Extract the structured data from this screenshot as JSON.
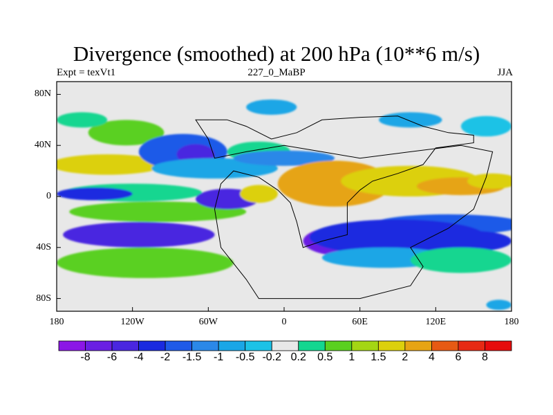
{
  "title": "Divergence (smoothed) at 200 hPa (10**6 m/s)",
  "subtitle": {
    "left": "Expt = texVt1",
    "center": "227_0_MaBP",
    "right": "JJA"
  },
  "axes": {
    "lat": [
      {
        "label": "80N",
        "value": 80
      },
      {
        "label": "40N",
        "value": 40
      },
      {
        "label": "0",
        "value": 0
      },
      {
        "label": "40S",
        "value": -40
      },
      {
        "label": "80S",
        "value": -80
      }
    ],
    "lon": [
      {
        "label": "180",
        "value": -180
      },
      {
        "label": "120W",
        "value": -120
      },
      {
        "label": "60W",
        "value": -60
      },
      {
        "label": "0",
        "value": 0
      },
      {
        "label": "60E",
        "value": 60
      },
      {
        "label": "120E",
        "value": 120
      },
      {
        "label": "180",
        "value": 180
      }
    ],
    "lon_range": [
      -180,
      180
    ],
    "lat_range": [
      -90,
      90
    ]
  },
  "colorbar": {
    "labels": [
      "-8",
      "-6",
      "-4",
      "-2",
      "-1.5",
      "-1",
      "-0.5",
      "-0.2",
      "0.2",
      "0.5",
      "1",
      "1.5",
      "2",
      "4",
      "6",
      "8"
    ],
    "colors": [
      "#8b16e6",
      "#6a1fe3",
      "#4a26e0",
      "#1a2ae0",
      "#1f5ae8",
      "#2b88e8",
      "#1aa6e6",
      "#1cc2e6",
      "#e8e8e8",
      "#14d690",
      "#5ad020",
      "#a4d614",
      "#dcd00c",
      "#e6a414",
      "#e65a14",
      "#e62a14",
      "#e60c0c"
    ]
  },
  "map_data": {
    "type": "filled-contour",
    "variable": "Divergence (smoothed) at 200 hPa",
    "units": "10**6 m/s",
    "background_class": 8,
    "features": [
      {
        "lon": -125,
        "lat": 50,
        "rx": 30,
        "ry": 10,
        "c": 10
      },
      {
        "lon": -160,
        "lat": 60,
        "rx": 20,
        "ry": 6,
        "c": 9
      },
      {
        "lon": -140,
        "lat": 25,
        "rx": 45,
        "ry": 8,
        "c": 12
      },
      {
        "lon": -120,
        "lat": 3,
        "rx": 55,
        "ry": 7,
        "c": 9
      },
      {
        "lon": -150,
        "lat": 2,
        "rx": 30,
        "ry": 5,
        "c": 3
      },
      {
        "lon": -100,
        "lat": -12,
        "rx": 70,
        "ry": 8,
        "c": 10
      },
      {
        "lon": -115,
        "lat": -30,
        "rx": 60,
        "ry": 10,
        "c": 2
      },
      {
        "lon": -110,
        "lat": -52,
        "rx": 70,
        "ry": 12,
        "c": 10
      },
      {
        "lon": -80,
        "lat": 35,
        "rx": 35,
        "ry": 14,
        "c": 4
      },
      {
        "lon": -70,
        "lat": 33,
        "rx": 15,
        "ry": 8,
        "c": 2
      },
      {
        "lon": -55,
        "lat": 22,
        "rx": 50,
        "ry": 8,
        "c": 6
      },
      {
        "lon": -45,
        "lat": -2,
        "rx": 25,
        "ry": 8,
        "c": 2
      },
      {
        "lon": -20,
        "lat": 2,
        "rx": 15,
        "ry": 7,
        "c": 12
      },
      {
        "lon": -20,
        "lat": 35,
        "rx": 25,
        "ry": 8,
        "c": 9
      },
      {
        "lon": 0,
        "lat": 30,
        "rx": 40,
        "ry": 6,
        "c": 5
      },
      {
        "lon": 40,
        "lat": 10,
        "rx": 45,
        "ry": 18,
        "c": 13
      },
      {
        "lon": 100,
        "lat": 12,
        "rx": 55,
        "ry": 12,
        "c": 12
      },
      {
        "lon": 140,
        "lat": 8,
        "rx": 35,
        "ry": 7,
        "c": 13
      },
      {
        "lon": 165,
        "lat": 12,
        "rx": 20,
        "ry": 6,
        "c": 12
      },
      {
        "lon": 130,
        "lat": -22,
        "rx": 60,
        "ry": 8,
        "c": 4
      },
      {
        "lon": 50,
        "lat": -35,
        "rx": 35,
        "ry": 12,
        "c": 1
      },
      {
        "lon": 90,
        "lat": -32,
        "rx": 70,
        "ry": 14,
        "c": 3
      },
      {
        "lon": 150,
        "lat": -35,
        "rx": 30,
        "ry": 8,
        "c": 3
      },
      {
        "lon": 80,
        "lat": -48,
        "rx": 50,
        "ry": 8,
        "c": 6
      },
      {
        "lon": 140,
        "lat": -50,
        "rx": 40,
        "ry": 10,
        "c": 9
      },
      {
        "lon": 160,
        "lat": 55,
        "rx": 20,
        "ry": 8,
        "c": 7
      },
      {
        "lon": 100,
        "lat": 60,
        "rx": 25,
        "ry": 6,
        "c": 6
      },
      {
        "lon": -10,
        "lat": 70,
        "rx": 20,
        "ry": 6,
        "c": 6
      },
      {
        "lon": 170,
        "lat": -85,
        "rx": 10,
        "ry": 4,
        "c": 6
      }
    ],
    "continent_outline": [
      [
        -45,
        60
      ],
      [
        -30,
        55
      ],
      [
        -10,
        45
      ],
      [
        10,
        50
      ],
      [
        30,
        60
      ],
      [
        60,
        62
      ],
      [
        90,
        63
      ],
      [
        110,
        55
      ],
      [
        130,
        50
      ],
      [
        150,
        48
      ],
      [
        150,
        42
      ],
      [
        120,
        38
      ],
      [
        110,
        25
      ],
      [
        90,
        18
      ],
      [
        70,
        12
      ],
      [
        60,
        5
      ],
      [
        50,
        -5
      ],
      [
        50,
        -30
      ],
      [
        30,
        -35
      ],
      [
        15,
        -40
      ],
      [
        10,
        -20
      ],
      [
        5,
        -5
      ],
      [
        -5,
        5
      ],
      [
        -20,
        15
      ],
      [
        -40,
        20
      ],
      [
        -50,
        10
      ],
      [
        -55,
        -10
      ],
      [
        -50,
        -40
      ],
      [
        -30,
        -65
      ],
      [
        -20,
        -80
      ],
      [
        60,
        -80
      ],
      [
        100,
        -70
      ],
      [
        110,
        -55
      ],
      [
        100,
        -40
      ],
      [
        130,
        -25
      ],
      [
        150,
        -10
      ],
      [
        160,
        15
      ],
      [
        165,
        35
      ],
      [
        140,
        40
      ],
      [
        100,
        35
      ],
      [
        60,
        30
      ],
      [
        30,
        35
      ],
      [
        0,
        40
      ],
      [
        -30,
        35
      ],
      [
        -55,
        30
      ],
      [
        -60,
        45
      ],
      [
        -70,
        60
      ],
      [
        -45,
        60
      ]
    ]
  }
}
